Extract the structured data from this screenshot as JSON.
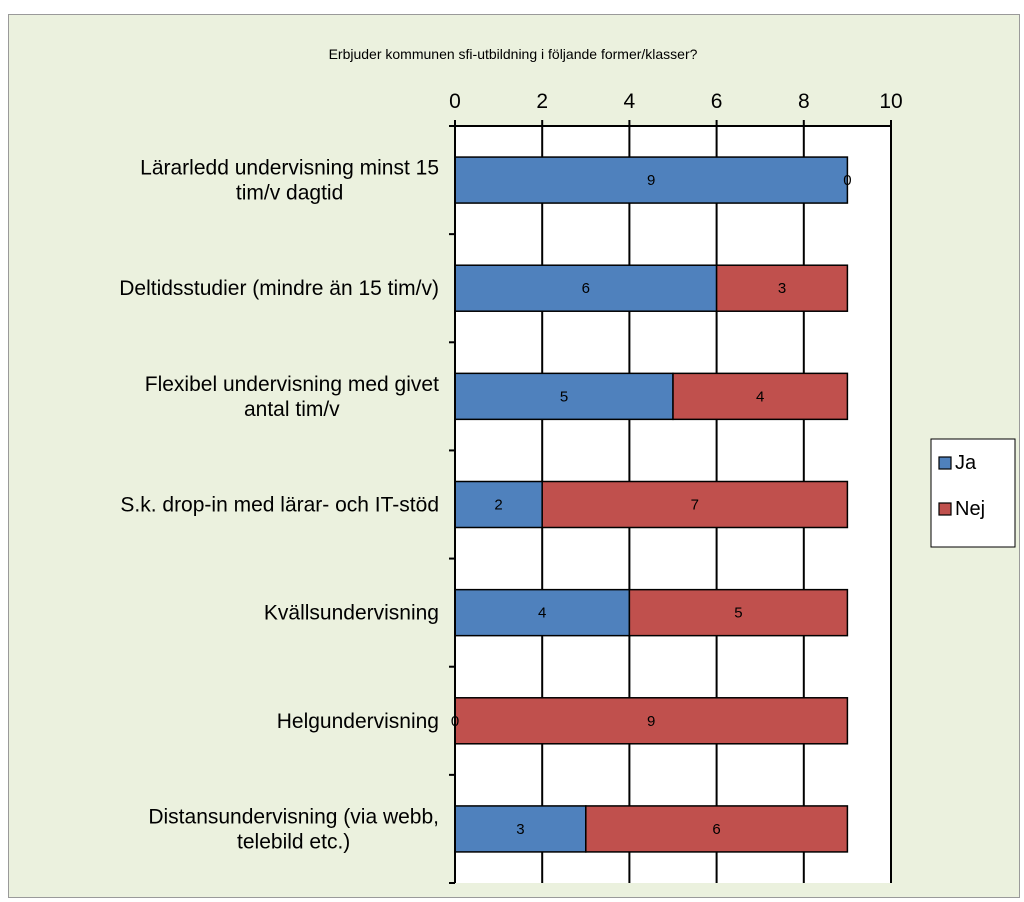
{
  "chart_data": {
    "type": "bar",
    "orientation": "horizontal",
    "stacked": true,
    "title": "Erbjuder kommunen sfi-utbildning i följande former/klasser?",
    "categories": [
      [
        "Lärarledd undervisning minst 15",
        "tim/v dagtid"
      ],
      [
        "Deltidsstudier (mindre än 15 tim/v)"
      ],
      [
        "Flexibel undervisning med givet",
        "antal tim/v"
      ],
      [
        "S.k. drop-in med lärar- och IT-stöd"
      ],
      [
        "Kvällsundervisning"
      ],
      [
        "Helgundervisning"
      ],
      [
        "Distansundervisning (via webb,",
        "telebild etc.)"
      ]
    ],
    "series": [
      {
        "name": "Ja",
        "color": "#4f81bd",
        "values": [
          9,
          6,
          5,
          2,
          4,
          0,
          3
        ]
      },
      {
        "name": "Nej",
        "color": "#c0504d",
        "values": [
          0,
          3,
          4,
          7,
          5,
          9,
          6
        ]
      }
    ],
    "xlim": [
      0,
      10
    ],
    "xticks": [
      0,
      2,
      4,
      6,
      8,
      10
    ],
    "x_axis_position": "top",
    "grid": true,
    "legend_position": "right",
    "data_labels": true
  }
}
